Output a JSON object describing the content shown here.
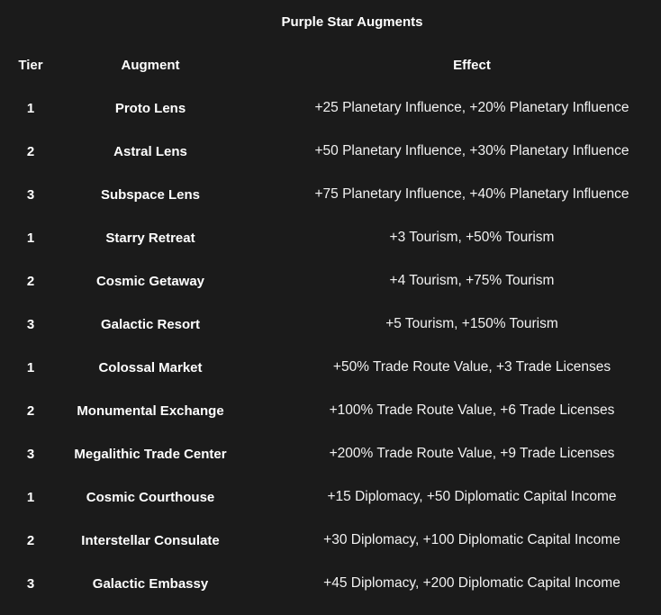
{
  "colors": {
    "background": "#1b1b1b",
    "heading_text": "#ffffff",
    "effect_text": "#f2f2f2"
  },
  "chart_data": {
    "type": "table",
    "title": "Purple Star Augments",
    "columns": [
      "Tier",
      "Augment",
      "Effect"
    ],
    "rows": [
      {
        "tier": "1",
        "augment": "Proto Lens",
        "effect": "+25 Planetary Influence, +20% Planetary Influence"
      },
      {
        "tier": "2",
        "augment": "Astral Lens",
        "effect": "+50 Planetary Influence, +30% Planetary Influence"
      },
      {
        "tier": "3",
        "augment": "Subspace Lens",
        "effect": "+75 Planetary Influence, +40% Planetary Influence"
      },
      {
        "tier": "1",
        "augment": "Starry Retreat",
        "effect": "+3 Tourism, +50% Tourism"
      },
      {
        "tier": "2",
        "augment": "Cosmic Getaway",
        "effect": "+4 Tourism, +75% Tourism"
      },
      {
        "tier": "3",
        "augment": "Galactic Resort",
        "effect": "+5 Tourism, +150% Tourism"
      },
      {
        "tier": "1",
        "augment": "Colossal Market",
        "effect": "+50% Trade Route Value, +3 Trade Licenses"
      },
      {
        "tier": "2",
        "augment": "Monumental Exchange",
        "effect": "+100% Trade Route Value, +6 Trade Licenses"
      },
      {
        "tier": "3",
        "augment": "Megalithic Trade Center",
        "effect": "+200% Trade Route Value, +9 Trade Licenses"
      },
      {
        "tier": "1",
        "augment": "Cosmic Courthouse",
        "effect": "+15 Diplomacy, +50 Diplomatic Capital Income"
      },
      {
        "tier": "2",
        "augment": "Interstellar Consulate",
        "effect": "+30 Diplomacy, +100 Diplomatic Capital Income"
      },
      {
        "tier": "3",
        "augment": "Galactic Embassy",
        "effect": "+45 Diplomacy, +200 Diplomatic Capital Income"
      }
    ]
  }
}
